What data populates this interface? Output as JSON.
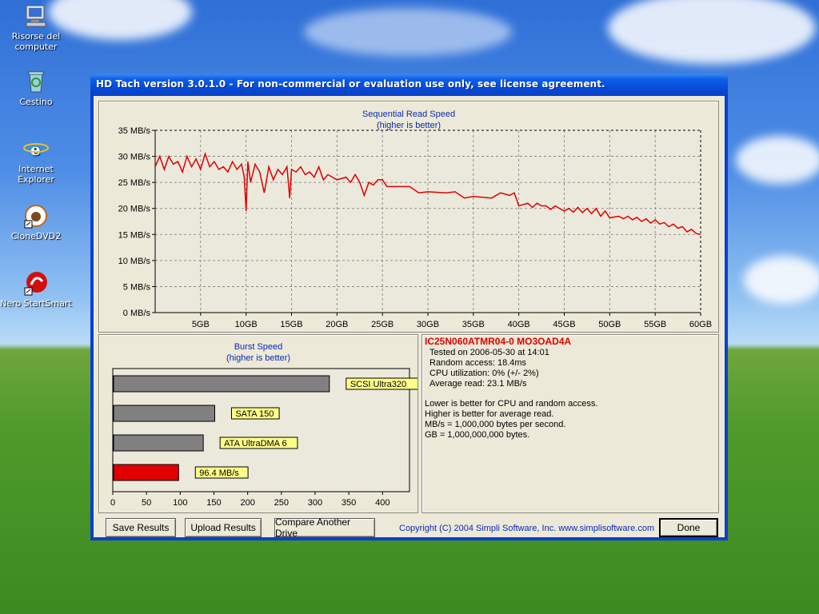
{
  "desktop": {
    "icons": [
      {
        "label": "Risorse del computer",
        "name": "my-computer"
      },
      {
        "label": "Cestino",
        "name": "recycle-bin"
      },
      {
        "label": "Internet Explorer",
        "name": "internet-explorer"
      },
      {
        "label": "CloneDVD2",
        "name": "clonedvd2"
      },
      {
        "label": "Nero StartSmart",
        "name": "nero-startsmart"
      }
    ]
  },
  "window": {
    "title": "HD Tach version 3.0.1.0  - For non-commercial or evaluation use only, see license agreement."
  },
  "seq_chart": {
    "title": "Sequential Read Speed",
    "subtitle": "(higher is better)"
  },
  "burst_chart": {
    "title": "Burst Speed",
    "subtitle": "(higher is better)"
  },
  "chart_data": [
    {
      "type": "line",
      "title": "Sequential Read Speed",
      "subtitle": "(higher is better)",
      "y_unit": "MB/s",
      "ylim": [
        0,
        35
      ],
      "yticks": [
        0,
        5,
        10,
        15,
        20,
        25,
        30,
        35
      ],
      "ytick_labels": [
        "0 MB/s",
        "5 MB/s",
        "10 MB/s",
        "15 MB/s",
        "20 MB/s",
        "25 MB/s",
        "30 MB/s",
        "35 MB/s"
      ],
      "xlim": [
        0,
        60
      ],
      "xticks": [
        5,
        10,
        15,
        20,
        25,
        30,
        35,
        40,
        45,
        50,
        55,
        60
      ],
      "xtick_labels": [
        "5GB",
        "10GB",
        "15GB",
        "20GB",
        "25GB",
        "30GB",
        "35GB",
        "40GB",
        "45GB",
        "50GB",
        "55GB",
        "60GB"
      ],
      "grid": true,
      "series": [
        {
          "color": "#e00000",
          "x": [
            0,
            0.5,
            1,
            1.5,
            2,
            2.5,
            3,
            3.5,
            4,
            4.5,
            5,
            5.5,
            6,
            6.5,
            7,
            7.5,
            8,
            8.5,
            9,
            9.5,
            9.8,
            10,
            10.2,
            10.5,
            11,
            11.5,
            12,
            12.5,
            13,
            13.5,
            14,
            14.5,
            14.8,
            15,
            15.5,
            16,
            16.5,
            17,
            17.5,
            18,
            18.5,
            19,
            20,
            21,
            21.5,
            22,
            22.5,
            23,
            23.5,
            24,
            24.5,
            25,
            25.5,
            26,
            28,
            29,
            30,
            32,
            33,
            34,
            35,
            37,
            38,
            39,
            39.5,
            40,
            41,
            41.5,
            42,
            42.5,
            43,
            43.5,
            44,
            45,
            45.5,
            46,
            46.5,
            47,
            47.5,
            48,
            48.5,
            49,
            49.5,
            50,
            51,
            51.5,
            52,
            52.5,
            53,
            53.5,
            54,
            54.5,
            55,
            55.5,
            56,
            56.5,
            57,
            57.5,
            58,
            58.5,
            59,
            59.5,
            60
          ],
          "y": [
            28,
            30,
            27.5,
            30,
            28.5,
            29,
            27,
            30,
            28,
            29.5,
            27.5,
            30.5,
            28,
            29,
            27.5,
            28,
            27,
            29,
            27.5,
            28.5,
            26,
            19.5,
            29,
            25,
            28.5,
            27,
            23,
            28,
            25.5,
            27.5,
            26.5,
            28,
            22,
            27.5,
            27,
            28,
            26.5,
            27,
            26,
            28,
            25.5,
            26.5,
            25.5,
            26,
            25,
            26.5,
            25,
            22.5,
            25,
            24.5,
            25.5,
            25.5,
            24.2,
            24.2,
            24.2,
            23,
            23.2,
            23,
            23.2,
            22,
            22.3,
            22,
            23,
            22.5,
            23,
            20.5,
            21,
            20.2,
            21,
            20.5,
            20.5,
            19.8,
            20.5,
            19.5,
            20,
            19.3,
            20.2,
            19.2,
            20,
            19,
            20,
            18.5,
            19.5,
            18.2,
            18.5,
            18,
            18.5,
            17.8,
            18.3,
            17.5,
            18,
            17.2,
            17.8,
            17,
            17.3,
            16.5,
            17,
            16.2,
            16.5,
            15.5,
            16,
            15.2,
            15
          ]
        }
      ]
    },
    {
      "type": "bar",
      "orientation": "horizontal",
      "title": "Burst Speed",
      "subtitle": "(higher is better)",
      "xlim": [
        0,
        440
      ],
      "xticks": [
        0,
        50,
        100,
        150,
        200,
        250,
        300,
        350,
        400
      ],
      "grid": false,
      "bars": [
        {
          "label": "SCSI Ultra320",
          "value": 320,
          "color": "#808080"
        },
        {
          "label": "SATA 150",
          "value": 150,
          "color": "#808080"
        },
        {
          "label": "ATA UltraDMA 6",
          "value": 133,
          "color": "#808080"
        },
        {
          "label": "96.4 MB/s",
          "value": 96.4,
          "color": "#e00000"
        }
      ]
    }
  ],
  "info": {
    "drive": "IC25N060ATMR04-0 MO3OAD4A",
    "tested": "Tested on 2006-05-30 at 14:01",
    "random_access": "Random access: 18.4ms",
    "cpu": "CPU utilization: 0% (+/- 2%)",
    "average": "Average read: 23.1 MB/s",
    "note1": "Lower is better for CPU and random access.",
    "note2": "Higher is better for average read.",
    "note3": "MB/s = 1,000,000 bytes per second.",
    "note4": "GB = 1,000,000,000 bytes."
  },
  "footer": {
    "save": "Save Results",
    "upload": "Upload Results",
    "compare": "Compare Another Drive",
    "copyright": "Copyright (C) 2004 Simpli Software, Inc. www.simplisoftware.com",
    "done": "Done"
  }
}
